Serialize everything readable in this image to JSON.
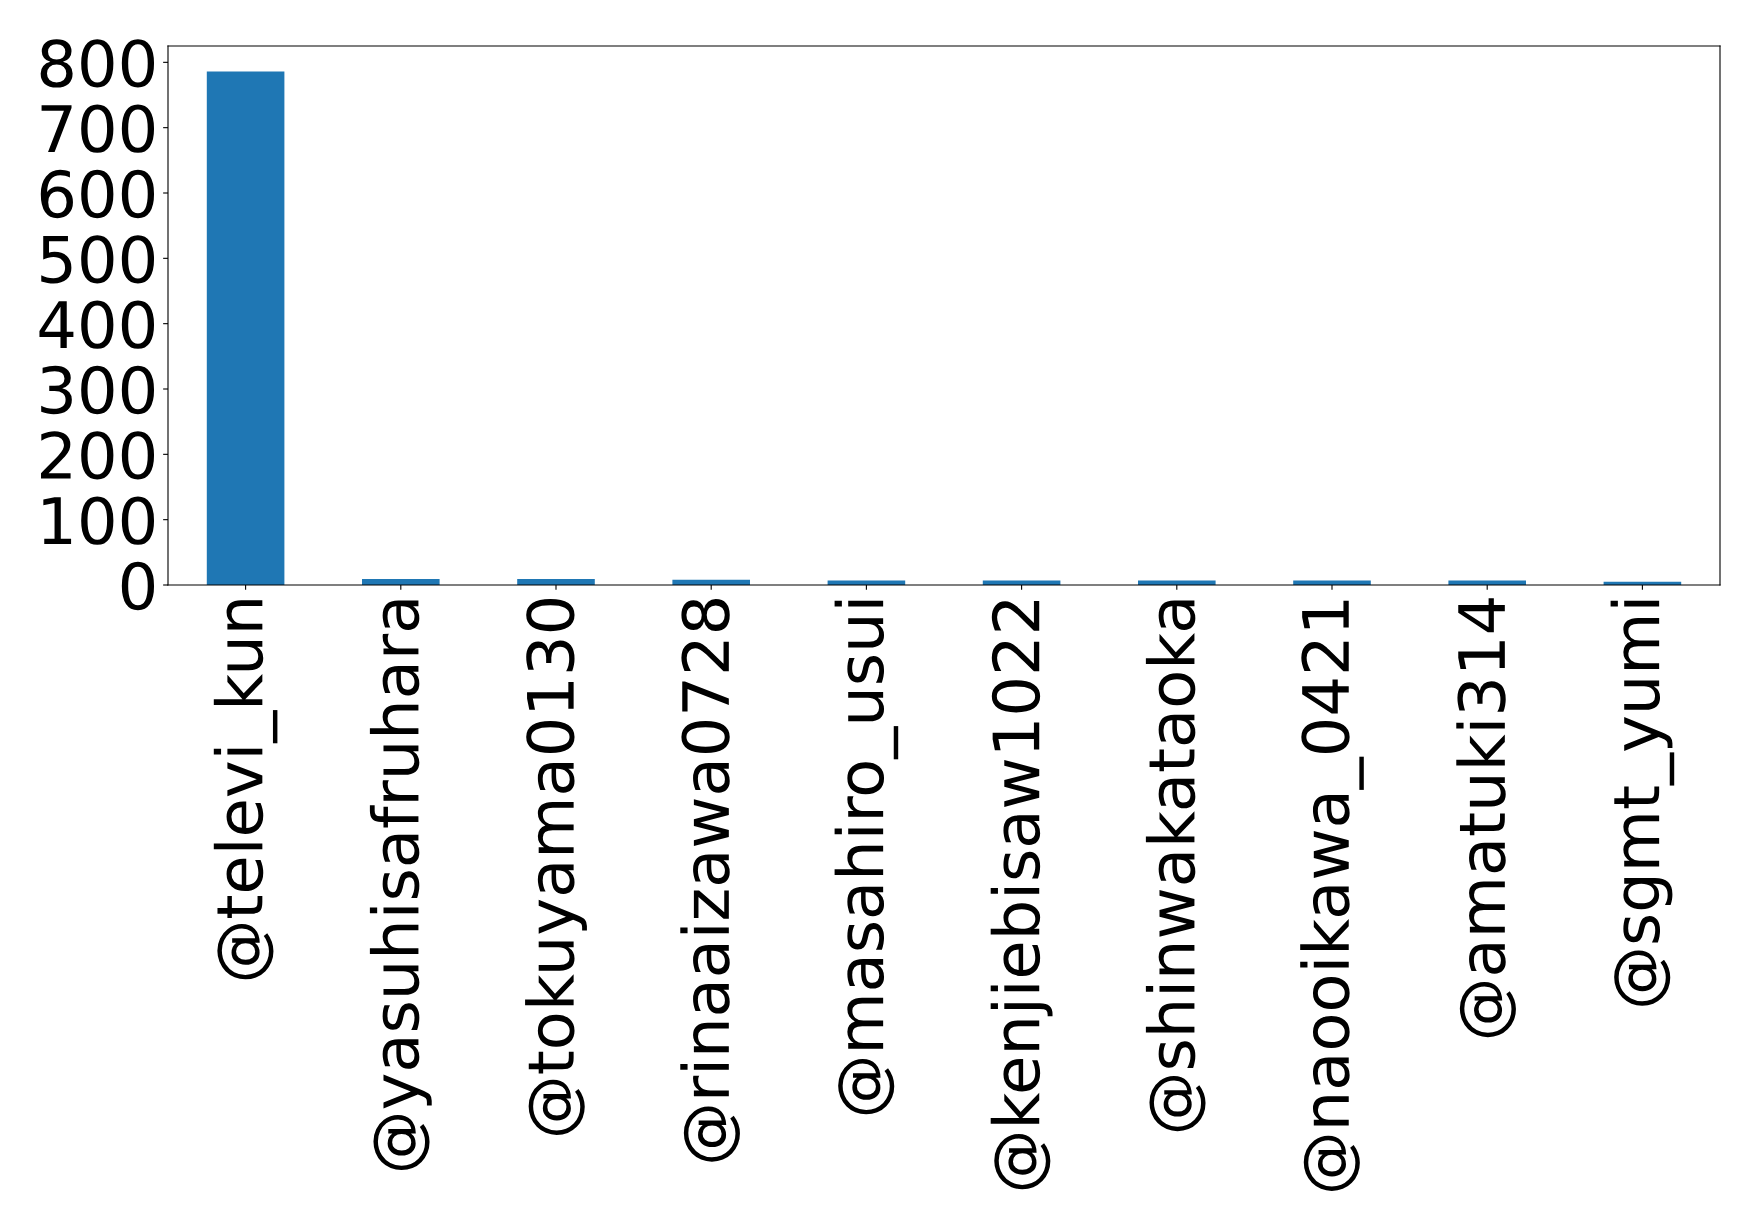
{
  "chart_data": {
    "type": "bar",
    "categories": [
      "@televi_kun",
      "@yasuhisafruhara",
      "@tokuyama0130",
      "@rinaaizawa0728",
      "@masahiro_usui",
      "@kenjiebisaw1022",
      "@shinwakataoka",
      "@naooikawa_0421",
      "@amatuki314",
      "@sgmt_yumi"
    ],
    "values": [
      786,
      9,
      9,
      8,
      7,
      7,
      7,
      7,
      7,
      5
    ],
    "color": "#1f77b4",
    "ylim": [
      0,
      825
    ],
    "yticks": [
      0,
      100,
      200,
      300,
      400,
      500,
      600,
      700,
      800
    ],
    "grid": false,
    "legend": false
  }
}
